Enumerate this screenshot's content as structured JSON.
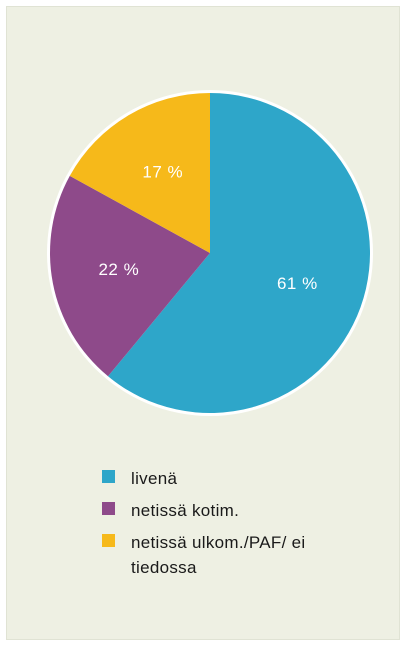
{
  "chart_data": {
    "type": "pie",
    "categories": [
      "livenä",
      "netissä kotim.",
      "netissä ulkom./PAF/ ei tiedossa"
    ],
    "values": [
      61,
      22,
      17
    ],
    "value_labels": [
      "61 %",
      "22 %",
      "17 %"
    ],
    "colors": [
      "#2ea6c9",
      "#8e4a8a",
      "#f6b91a"
    ]
  }
}
